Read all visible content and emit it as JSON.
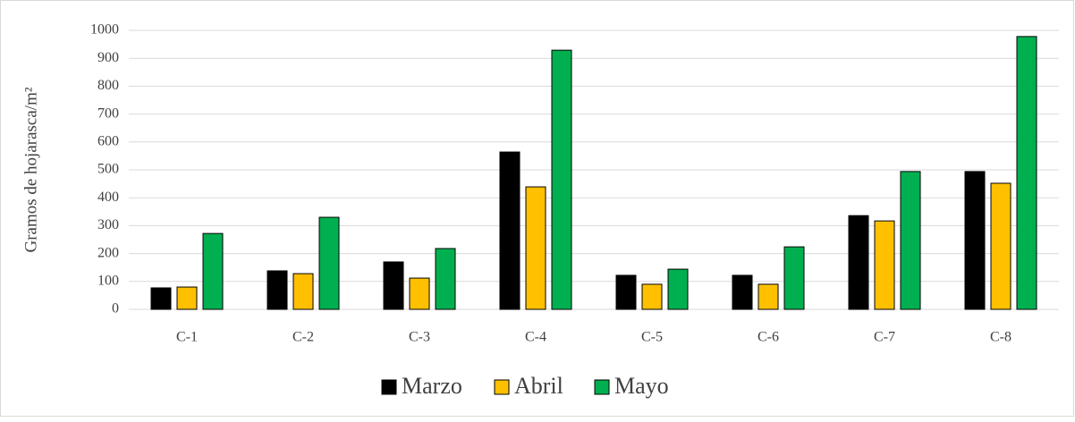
{
  "chart_data": {
    "type": "bar",
    "y_label": "Gramos de hojarasca/m²",
    "categories": [
      "C-1",
      "C-2",
      "C-3",
      "C-4",
      "C-5",
      "C-6",
      "C-7",
      "C-8"
    ],
    "series": [
      {
        "name": "Marzo",
        "color": "#000000",
        "values": [
          77,
          138,
          170,
          564,
          122,
          122,
          336,
          494
        ]
      },
      {
        "name": "Abril",
        "color": "#ffc000",
        "values": [
          80,
          128,
          112,
          439,
          90,
          90,
          317,
          452
        ]
      },
      {
        "name": "Mayo",
        "color": "#00b050",
        "values": [
          272,
          330,
          218,
          929,
          144,
          224,
          494,
          978
        ]
      }
    ],
    "ylim": [
      0,
      1000
    ],
    "yticks": [
      0,
      100,
      200,
      300,
      400,
      500,
      600,
      700,
      800,
      900,
      1000
    ],
    "grid": true,
    "legend": "bottom"
  }
}
